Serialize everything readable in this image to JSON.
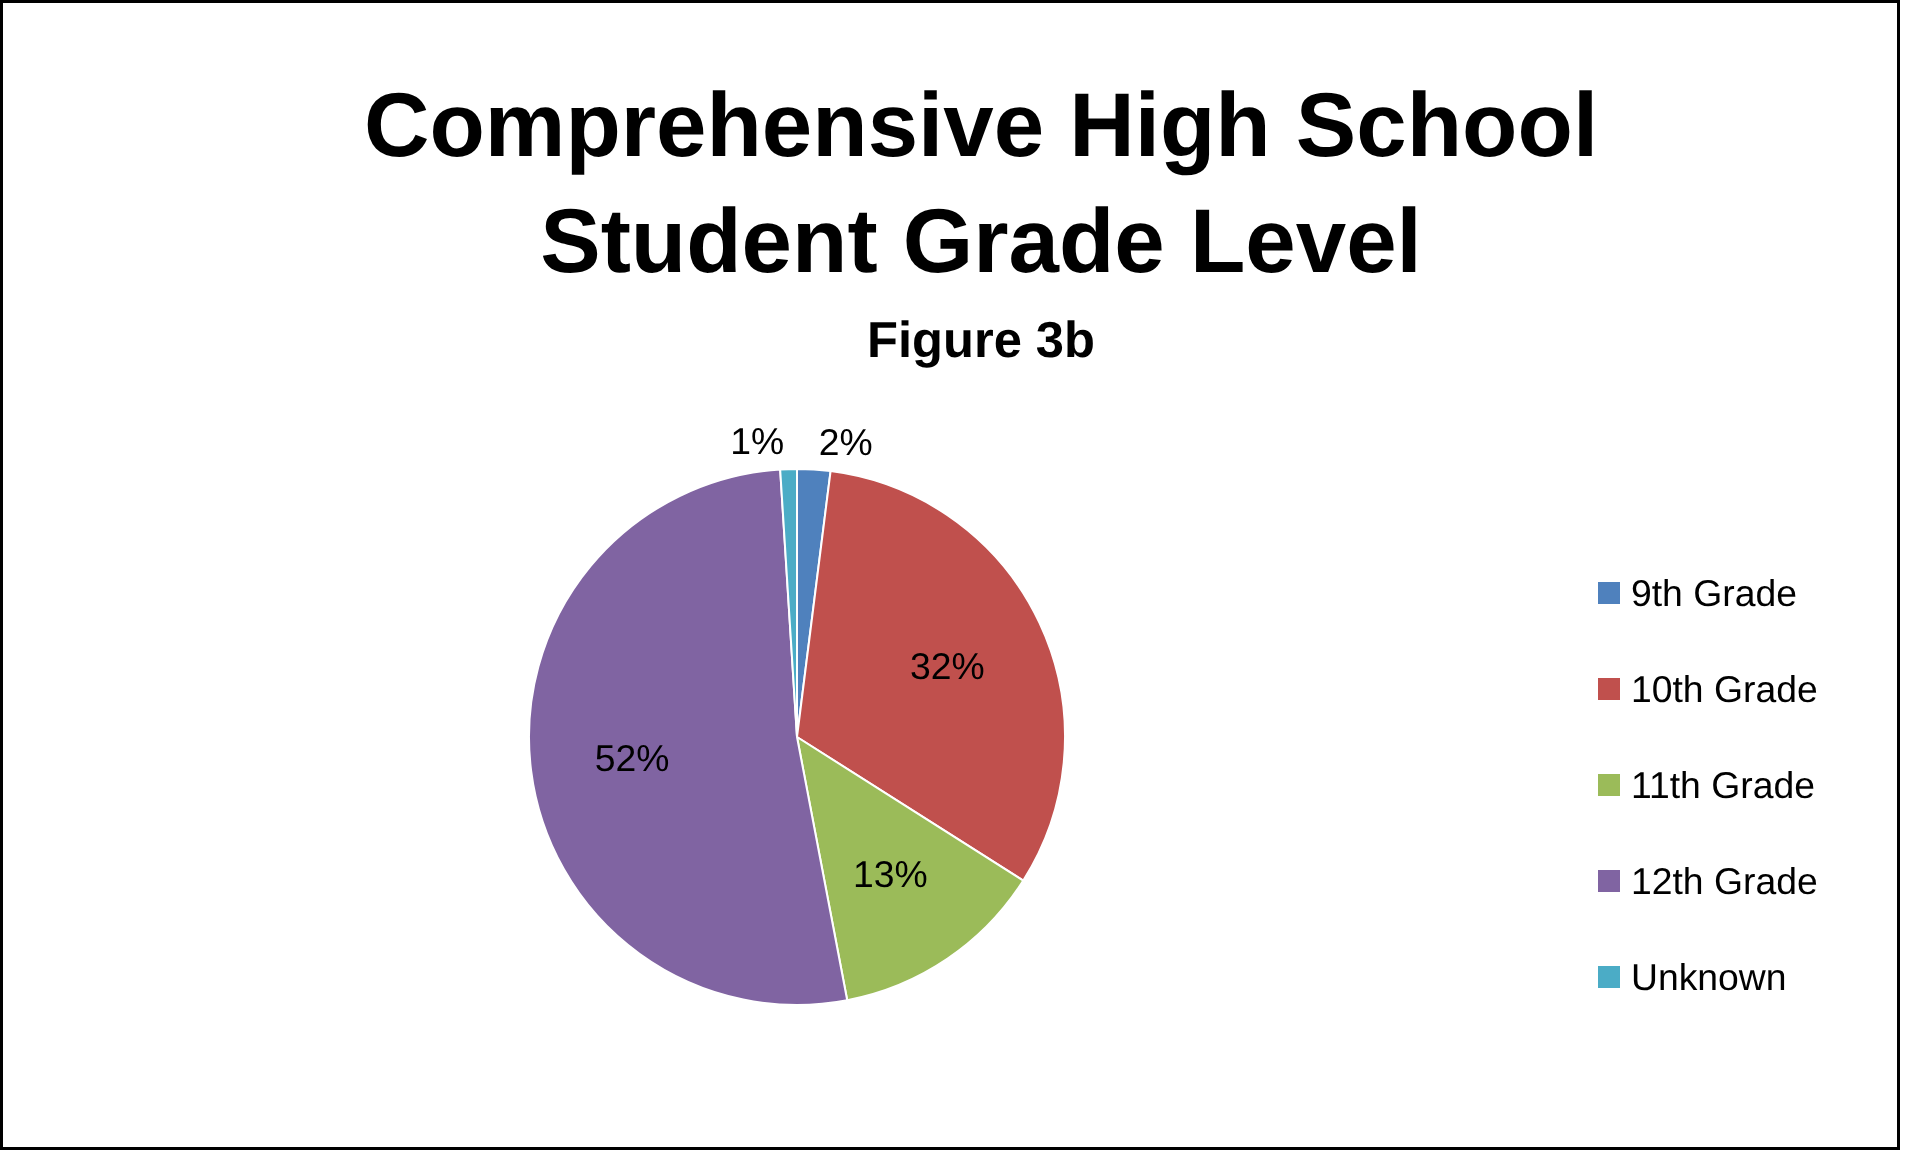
{
  "chart_data": {
    "type": "pie",
    "title": "Comprehensive High School\nStudent Grade Level",
    "subtitle": "Figure 3b",
    "categories": [
      "9th Grade",
      "10th Grade",
      "11th Grade",
      "12th Grade",
      "Unknown"
    ],
    "values": [
      2,
      32,
      13,
      52,
      1
    ],
    "colors": [
      "#4f81bd",
      "#c0504d",
      "#9bbb59",
      "#8064a2",
      "#4bacc6"
    ],
    "value_labels": [
      "2%",
      "32%",
      "13%",
      "52%",
      "1%"
    ],
    "legend": "right"
  }
}
